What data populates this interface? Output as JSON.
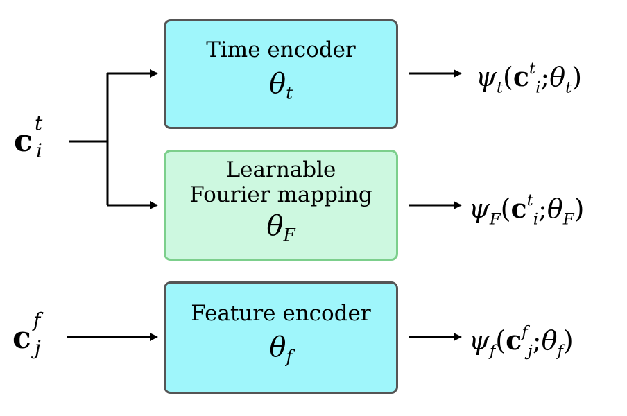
{
  "inputs": {
    "c_t": {
      "base": "c",
      "sup": "t",
      "sub": "i"
    },
    "c_f": {
      "base": "c",
      "sup": "f",
      "sub": "j"
    }
  },
  "boxes": {
    "time_encoder": {
      "label": "Time encoder",
      "param_base": "θ",
      "param_sub": "t",
      "color": "#9ff6fb",
      "border": "#555555"
    },
    "fourier": {
      "label_line1": "Learnable",
      "label_line2": "Fourier mapping",
      "param_base": "θ",
      "param_sub": "F",
      "color": "#cdf8e0",
      "border": "#7ccf8c"
    },
    "feature_encoder": {
      "label": "Feature encoder",
      "param_base": "θ",
      "param_sub": "f",
      "color": "#9ff6fb",
      "border": "#555555"
    }
  },
  "outputs": {
    "psi_t": {
      "fn": "ψ",
      "fn_sub": "t",
      "open": "(",
      "arg": "c",
      "arg_sup": "t",
      "arg_sub": "i",
      "sep": ";",
      "param": "θ",
      "param_sub": "t",
      "close": ")"
    },
    "psi_F": {
      "fn": "ψ",
      "fn_sub": "F",
      "open": "(",
      "arg": "c",
      "arg_sup": "t",
      "arg_sub": "i",
      "sep": ";",
      "param": "θ",
      "param_sub": "F",
      "close": ")"
    },
    "psi_f": {
      "fn": "ψ",
      "fn_sub": "f",
      "open": "(",
      "arg": "c",
      "arg_sup": "f",
      "arg_sub": "j",
      "sep": ";",
      "param": "θ",
      "param_sub": "f",
      "close": ")"
    }
  }
}
